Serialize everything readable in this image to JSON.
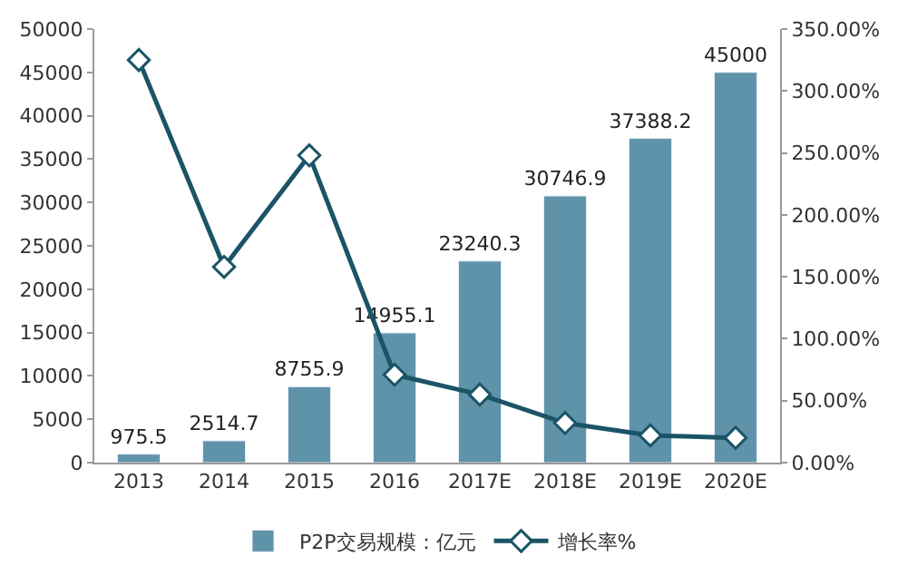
{
  "chart_data": {
    "type": "bar",
    "categories": [
      "2013",
      "2014",
      "2015",
      "2016",
      "2017E",
      "2018E",
      "2019E",
      "2020E"
    ],
    "series": [
      {
        "name": "P2P交易规模：亿元",
        "color": "#5f93aa",
        "values": [
          975.5,
          2514.7,
          8755.9,
          14955.1,
          23240.3,
          30746.9,
          37388.2,
          45000
        ],
        "data_labels": true
      },
      {
        "name": "增长率%",
        "type": "line",
        "axis": "y2",
        "color": "#1b5466",
        "marker": "diamond",
        "values": [
          325,
          158,
          248,
          71,
          55,
          32,
          22,
          20
        ]
      }
    ],
    "ylim": [
      0,
      50000
    ],
    "yticks": [
      0,
      5000,
      10000,
      15000,
      20000,
      25000,
      30000,
      35000,
      40000,
      45000,
      50000
    ],
    "y2lim": [
      0,
      350
    ],
    "y2ticks": [
      {
        "value": 0,
        "label": "0.00%"
      },
      {
        "value": 50,
        "label": "50.00%"
      },
      {
        "value": 100,
        "label": "100.00%"
      },
      {
        "value": 150,
        "label": "150.00%"
      },
      {
        "value": 200,
        "label": "200.00%"
      },
      {
        "value": 250,
        "label": "250.00%"
      },
      {
        "value": 300,
        "label": "300.00%"
      },
      {
        "value": 350,
        "label": "350.00%"
      }
    ],
    "grid": false,
    "legend": "bottom"
  }
}
